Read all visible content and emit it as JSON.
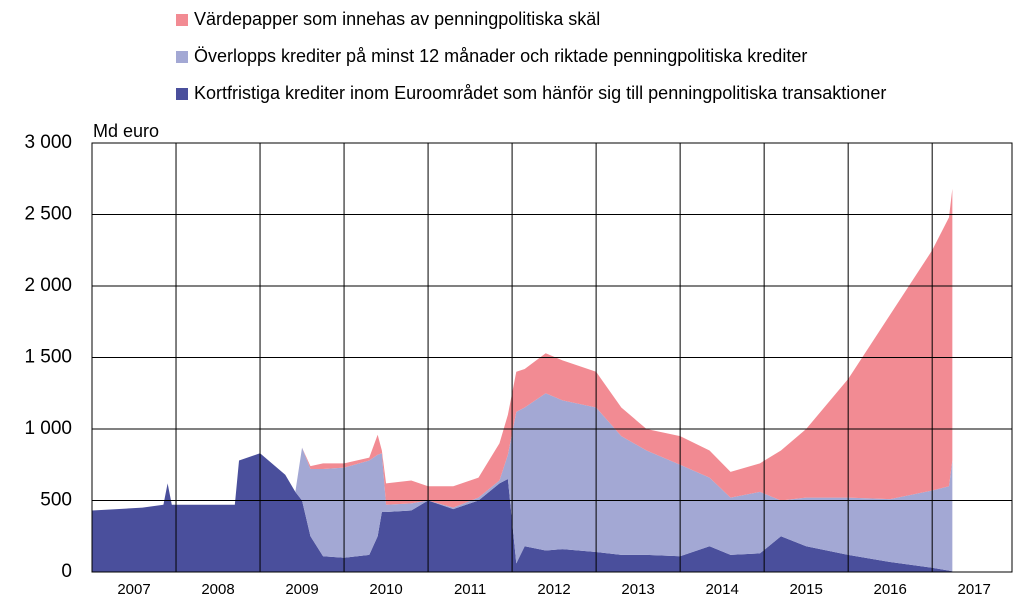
{
  "chart_data": {
    "type": "stacked_area",
    "y_label": "Md euro",
    "xlim": [
      2007,
      2017.95
    ],
    "xticks": [
      2007,
      2008,
      2009,
      2010,
      2011,
      2012,
      2013,
      2014,
      2015,
      2016,
      2017
    ],
    "ylim": [
      0,
      3000
    ],
    "yticks": [
      0,
      500,
      {
        "value": 1000,
        "label": "1 000"
      },
      {
        "value": 1500,
        "label": "1 500"
      },
      {
        "value": 2000,
        "label": "2 000"
      },
      {
        "value": 2500,
        "label": "2 500"
      },
      {
        "value": 3000,
        "label": "3 000"
      }
    ],
    "grid": true,
    "x": [
      2007.0,
      2007.3,
      2007.6,
      2007.85,
      2007.9,
      2007.95,
      2008.3,
      2008.7,
      2008.75,
      2009.0,
      2009.3,
      2009.42,
      2009.5,
      2009.6,
      2009.75,
      2010.0,
      2010.3,
      2010.4,
      2010.45,
      2010.5,
      2010.8,
      2011.0,
      2011.3,
      2011.6,
      2011.85,
      2011.95,
      2012.05,
      2012.15,
      2012.4,
      2012.6,
      2013.0,
      2013.3,
      2013.6,
      2014.0,
      2014.35,
      2014.6,
      2014.95,
      2015.2,
      2015.5,
      2016.0,
      2016.5,
      2017.0,
      2017.2,
      2017.24
    ],
    "series": [
      {
        "name": "Kortfristiga krediter inom Euroområdet som hänför sig till penningpolitiska transaktioner",
        "color": "#4a4f9c",
        "values": [
          430,
          440,
          450,
          470,
          620,
          470,
          470,
          470,
          780,
          830,
          680,
          560,
          500,
          250,
          110,
          100,
          120,
          250,
          420,
          420,
          430,
          500,
          440,
          500,
          620,
          650,
          60,
          180,
          150,
          160,
          140,
          120,
          120,
          110,
          180,
          120,
          130,
          250,
          180,
          120,
          70,
          30,
          10,
          5
        ]
      },
      {
        "name": "Överlopps krediter på minst 12 månader och riktade penningpolitiska krediter",
        "color": "#a3a8d4",
        "values": [
          0,
          0,
          0,
          0,
          0,
          0,
          0,
          0,
          0,
          0,
          0,
          0,
          370,
          470,
          610,
          630,
          660,
          570,
          410,
          50,
          50,
          0,
          10,
          20,
          20,
          170,
          1060,
          970,
          1100,
          1040,
          1010,
          830,
          730,
          640,
          480,
          400,
          430,
          250,
          340,
          400,
          440,
          540,
          590,
          775
        ]
      },
      {
        "name": "Värdepapper som innehas av penningpolitiska skäl",
        "color": "#f28b93",
        "values": [
          0,
          0,
          0,
          0,
          0,
          0,
          0,
          0,
          0,
          0,
          0,
          0,
          0,
          20,
          40,
          30,
          20,
          140,
          20,
          150,
          160,
          100,
          150,
          140,
          260,
          280,
          280,
          270,
          280,
          280,
          250,
          200,
          150,
          200,
          190,
          180,
          200,
          350,
          480,
          830,
          1290,
          1680,
          1880,
          1900
        ]
      }
    ]
  }
}
